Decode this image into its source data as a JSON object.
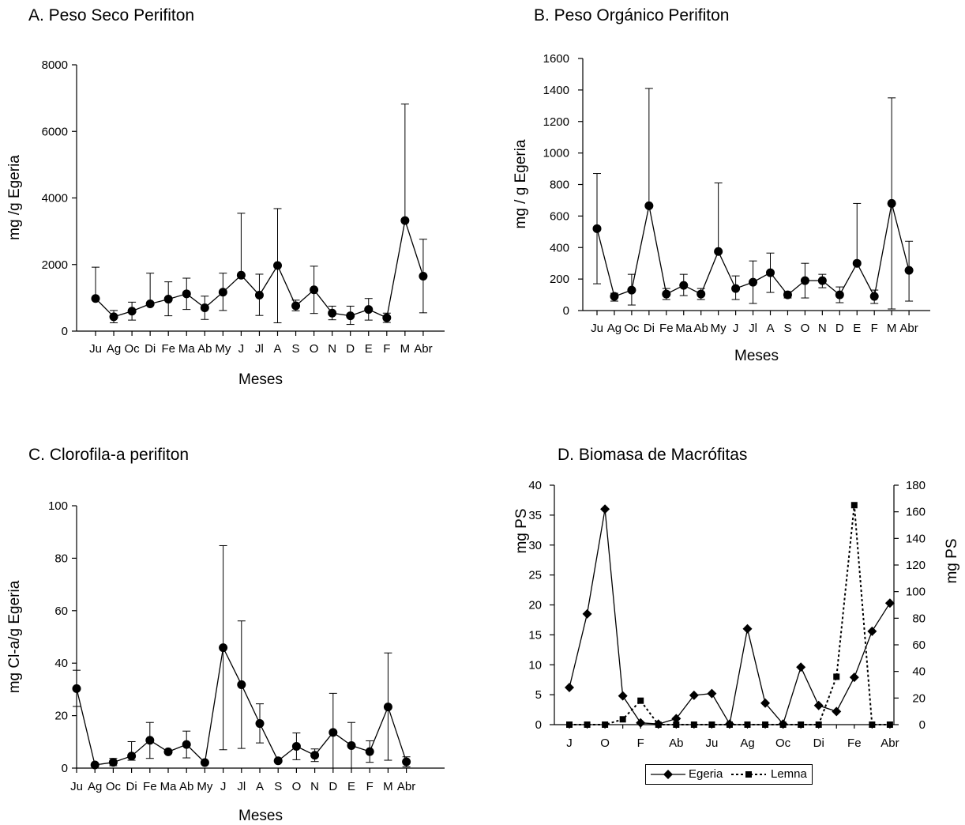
{
  "chart_data": [
    {
      "id": "A",
      "type": "line",
      "title": "A. Peso Seco Perifiton",
      "xlabel": "Meses",
      "ylabel": "mg /g Egeria",
      "ylim": [
        0,
        8000
      ],
      "yticks": [
        0,
        2000,
        4000,
        6000,
        8000
      ],
      "categories": [
        "Ju",
        "Ag",
        "Oc",
        "Di",
        "Fe",
        "Ma",
        "Ab",
        "My",
        "J",
        "Jl",
        "A",
        "S",
        "O",
        "N",
        "D",
        "E",
        "F",
        "M",
        "Abr"
      ],
      "series": [
        {
          "marker": "circle",
          "values": [
            980,
            430,
            600,
            820,
            960,
            1120,
            700,
            1170,
            1680,
            1080,
            1970,
            760,
            1240,
            540,
            460,
            650,
            400,
            3320,
            1650
          ],
          "error_upper": [
            1920,
            620,
            870,
            1740,
            1480,
            1590,
            1050,
            1740,
            3540,
            1710,
            3680,
            930,
            1950,
            750,
            750,
            980,
            540,
            6820,
            2760
          ],
          "error_lower": [
            980,
            250,
            330,
            820,
            460,
            650,
            350,
            620,
            1680,
            470,
            250,
            610,
            530,
            340,
            200,
            330,
            260,
            3320,
            550
          ]
        }
      ]
    },
    {
      "id": "B",
      "type": "line",
      "title": "B. Peso Orgánico Perifiton",
      "xlabel": "Meses",
      "ylabel": "mg / g Egeria",
      "ylim": [
        0,
        1600
      ],
      "yticks": [
        0,
        200,
        400,
        600,
        800,
        1000,
        1200,
        1400,
        1600
      ],
      "categories": [
        "Ju",
        "Ag",
        "Oc",
        "Di",
        "Fe",
        "Ma",
        "Ab",
        "My",
        "J",
        "Jl",
        "A",
        "S",
        "O",
        "N",
        "D",
        "E",
        "F",
        "M",
        "Abr"
      ],
      "series": [
        {
          "marker": "circle",
          "values": [
            520,
            90,
            130,
            665,
            105,
            160,
            105,
            375,
            140,
            180,
            240,
            100,
            190,
            190,
            100,
            300,
            90,
            680,
            255
          ],
          "error_upper": [
            870,
            110,
            230,
            1410,
            140,
            230,
            140,
            810,
            220,
            315,
            365,
            120,
            300,
            230,
            150,
            680,
            130,
            1350,
            440
          ],
          "error_lower": [
            170,
            60,
            35,
            665,
            70,
            95,
            70,
            375,
            70,
            45,
            115,
            80,
            80,
            145,
            50,
            300,
            45,
            10,
            60
          ]
        }
      ]
    },
    {
      "id": "C",
      "type": "line",
      "title": "C. Clorofila-a perifiton",
      "xlabel": "Meses",
      "ylabel": "mg Cl-a/g Egeria",
      "ylim": [
        0,
        100
      ],
      "yticks": [
        0,
        20,
        40,
        60,
        80,
        100
      ],
      "categories": [
        "Ju",
        "Ag",
        "Oc",
        "Di",
        "Fe",
        "Ma",
        "Ab",
        "My",
        "J",
        "Jl",
        "A",
        "S",
        "O",
        "N",
        "D",
        "E",
        "F",
        "M",
        "Abr"
      ],
      "series": [
        {
          "marker": "circle",
          "values": [
            30.3,
            1.2,
            2.2,
            4.6,
            10.6,
            6.2,
            9.0,
            2.1,
            45.9,
            31.8,
            17.0,
            2.8,
            8.3,
            4.9,
            13.6,
            8.6,
            6.3,
            23.3,
            2.4
          ],
          "error_upper": [
            37.3,
            1.5,
            3.7,
            10.1,
            17.4,
            6.6,
            14.1,
            2.3,
            84.8,
            56.1,
            24.5,
            3.1,
            13.4,
            7.3,
            28.5,
            17.4,
            10.4,
            43.9,
            4.3
          ],
          "error_lower": [
            23.5,
            0.9,
            0.9,
            3.0,
            3.7,
            5.8,
            3.9,
            1.9,
            7.0,
            7.5,
            9.6,
            2.5,
            3.2,
            2.5,
            0.0,
            0.0,
            2.2,
            3.0,
            0.5
          ]
        }
      ]
    },
    {
      "id": "D",
      "type": "line",
      "title": "D. Biomasa de Macrófitas",
      "ylabel_left": "mg PS",
      "ylabel_right": "mg PS",
      "ylim_left": [
        0,
        40
      ],
      "yticks_left": [
        0,
        5,
        10,
        15,
        20,
        25,
        30,
        35,
        40
      ],
      "ylim_right": [
        0,
        180
      ],
      "yticks_right": [
        0,
        20,
        40,
        60,
        80,
        100,
        120,
        140,
        160,
        180
      ],
      "x_tick_labels": [
        "J",
        "O",
        "F",
        "Ab",
        "Ju",
        "Ag",
        "Oc",
        "Di",
        "Fe",
        "Abr"
      ],
      "legend_position": "bottom",
      "series": [
        {
          "name": "Egeria",
          "axis": "left",
          "marker": "diamond",
          "line": "solid",
          "values": [
            6.2,
            18.5,
            36.0,
            4.8,
            0.3,
            0.1,
            1.0,
            4.9,
            5.2,
            0.1,
            16.0,
            3.6,
            0.1,
            9.6,
            3.2,
            2.2,
            7.9,
            15.6,
            20.3
          ]
        },
        {
          "name": "Lemna",
          "axis": "right",
          "marker": "square",
          "line": "dotted",
          "values": [
            0,
            0,
            0,
            4,
            18,
            0,
            0,
            0,
            0,
            0,
            0,
            0,
            0,
            0,
            0,
            36,
            165,
            0,
            0
          ]
        }
      ]
    }
  ]
}
